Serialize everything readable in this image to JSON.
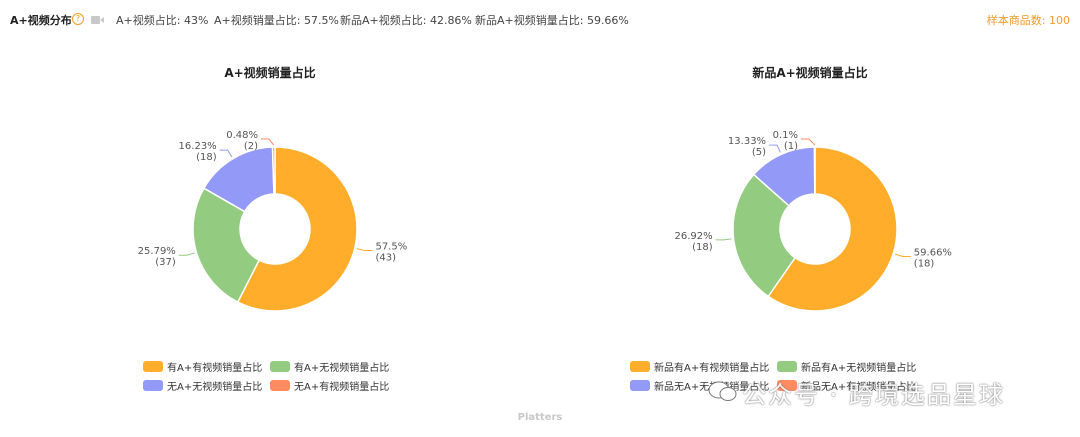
{
  "header": {
    "title": "A+视频分布",
    "help_icon": "question-circle-icon",
    "video_icon": "video-camera-icon",
    "stats": [
      "A+视频占比: 43%",
      "A+视频销量占比: 57.5%",
      "新品A+视频占比: 42.86%",
      "新品A+视频销量占比: 59.66%"
    ],
    "sample_count": "样本商品数: 100"
  },
  "colors": {
    "orange": "#ffad2b",
    "green": "#93cb80",
    "blue": "#9399f6",
    "red": "#ff8b61"
  },
  "chart_data": [
    {
      "type": "pie",
      "title": "A+视频销量占比",
      "donut": true,
      "slices": [
        {
          "name": "有A+有视频销量占比",
          "value": 57.5,
          "label": "57.5%",
          "count": "(43)",
          "color": "#ffad2b"
        },
        {
          "name": "有A+无视频销量占比",
          "value": 25.79,
          "label": "25.79%",
          "count": "(37)",
          "color": "#93cb80"
        },
        {
          "name": "无A+无视频销量占比",
          "value": 16.23,
          "label": "16.23%",
          "count": "(18)",
          "color": "#9399f6"
        },
        {
          "name": "无A+有视频销量占比",
          "value": 0.48,
          "label": "0.48%",
          "count": "(2)",
          "color": "#ff8b61"
        }
      ],
      "legend_position": "bottom"
    },
    {
      "type": "pie",
      "title": "新品A+视频销量占比",
      "donut": true,
      "slices": [
        {
          "name": "新品有A+有视频销量占比",
          "value": 59.66,
          "label": "59.66%",
          "count": "(18)",
          "color": "#ffad2b"
        },
        {
          "name": "新品有A+无视频销量占比",
          "value": 26.92,
          "label": "26.92%",
          "count": "(18)",
          "color": "#93cb80"
        },
        {
          "name": "新品无A+无视频销量占比",
          "value": 13.33,
          "label": "13.33%",
          "count": "(5)",
          "color": "#9399f6"
        },
        {
          "name": "新品无A+有视频销量占比",
          "value": 0.1,
          "label": "0.1%",
          "count": "(1)",
          "color": "#ff8b61"
        }
      ],
      "legend_position": "bottom"
    }
  ],
  "footer": "Platters",
  "watermark": "公众号 · 跨境选品星球"
}
